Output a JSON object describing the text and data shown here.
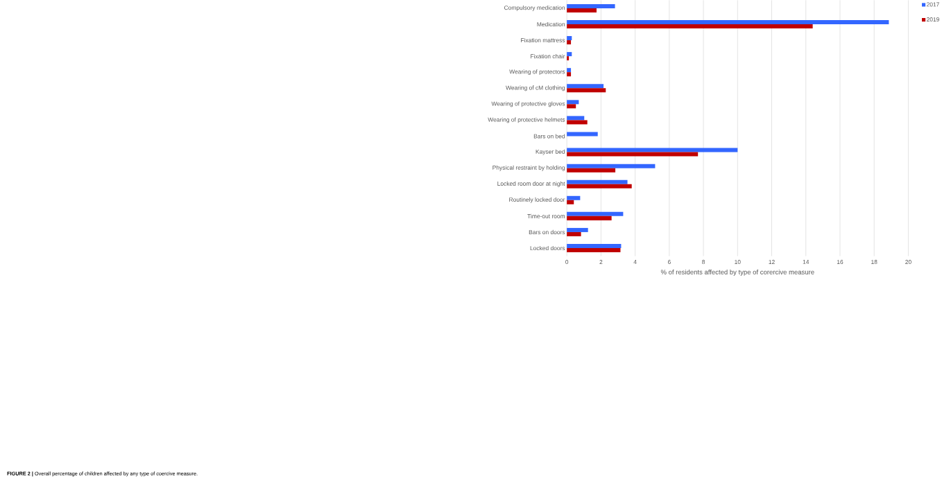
{
  "chart_data": {
    "type": "bar",
    "orientation": "horizontal",
    "categories": [
      "Compulsory medication",
      "Medication",
      "Fixation mattress",
      "Fixation chair",
      "Wearing of protectors",
      "Wearing of cM clothing",
      "Wearing of protective gloves",
      "Wearing of protective helmets",
      "Bars on bed",
      "Kayser bed",
      "Physical restraint by holding",
      "Locked room door at night",
      "Routinely locked door",
      "Time-out room",
      "Bars on doors",
      "Locked doors"
    ],
    "series": [
      {
        "name": "2017",
        "color": "#3366ff",
        "values": [
          2.82,
          18.86,
          0.29,
          0.29,
          0.24,
          2.15,
          0.7,
          1.02,
          1.81,
          10.0,
          5.17,
          3.55,
          0.78,
          3.3,
          1.24,
          3.18
        ]
      },
      {
        "name": "2019",
        "color": "#c00000",
        "values": [
          1.74,
          14.4,
          0.24,
          0.12,
          0.24,
          2.28,
          0.53,
          1.2,
          null,
          7.68,
          2.84,
          3.8,
          0.41,
          2.62,
          0.83,
          3.14
        ]
      }
    ],
    "xlabel": "% of residents affected by type of corercive measure",
    "xlim": [
      0,
      20
    ],
    "xticks": [
      0,
      2,
      4,
      6,
      8,
      10,
      12,
      14,
      16,
      18,
      20
    ],
    "grid": "x",
    "legend": "top right",
    "annotations": [
      "**FIGURE 2 |** Overall percentage of children affected by any type of coercive measure."
    ]
  }
}
